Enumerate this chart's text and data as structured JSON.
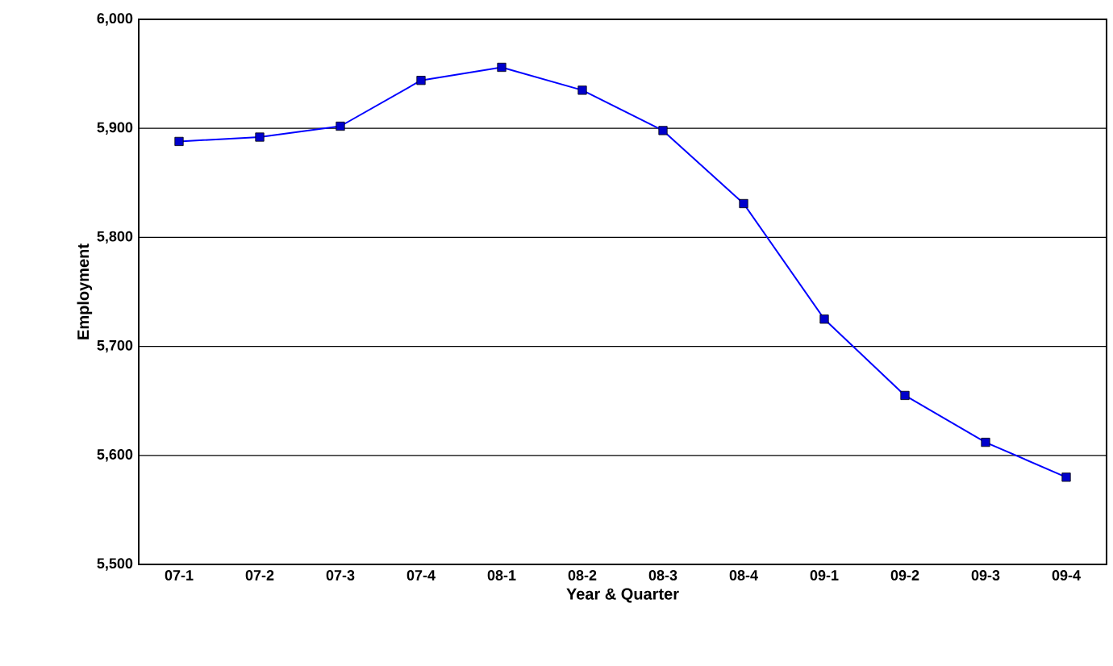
{
  "chart_data": {
    "type": "line",
    "xlabel": "Year & Quarter",
    "ylabel": "Employment",
    "categories": [
      "07-1",
      "07-2",
      "07-3",
      "07-4",
      "08-1",
      "08-2",
      "08-3",
      "08-4",
      "09-1",
      "09-2",
      "09-3",
      "09-4"
    ],
    "series": [
      {
        "color": "#0000ff",
        "values": [
          5888,
          5892,
          5902,
          5944,
          5956,
          5935,
          5898,
          5831,
          5725,
          5655,
          5612,
          5580
        ]
      }
    ],
    "ylim": [
      5500,
      6000
    ],
    "yticks": [
      {
        "value": 5500,
        "label": "5,500"
      },
      {
        "value": 5600,
        "label": "5,600"
      },
      {
        "value": 5700,
        "label": "5,700"
      },
      {
        "value": 5800,
        "label": "5,800"
      },
      {
        "value": 5900,
        "label": "5,900"
      },
      {
        "value": 6000,
        "label": "6,000"
      }
    ],
    "grid": "y",
    "marker": "square",
    "line_style": "solid"
  }
}
